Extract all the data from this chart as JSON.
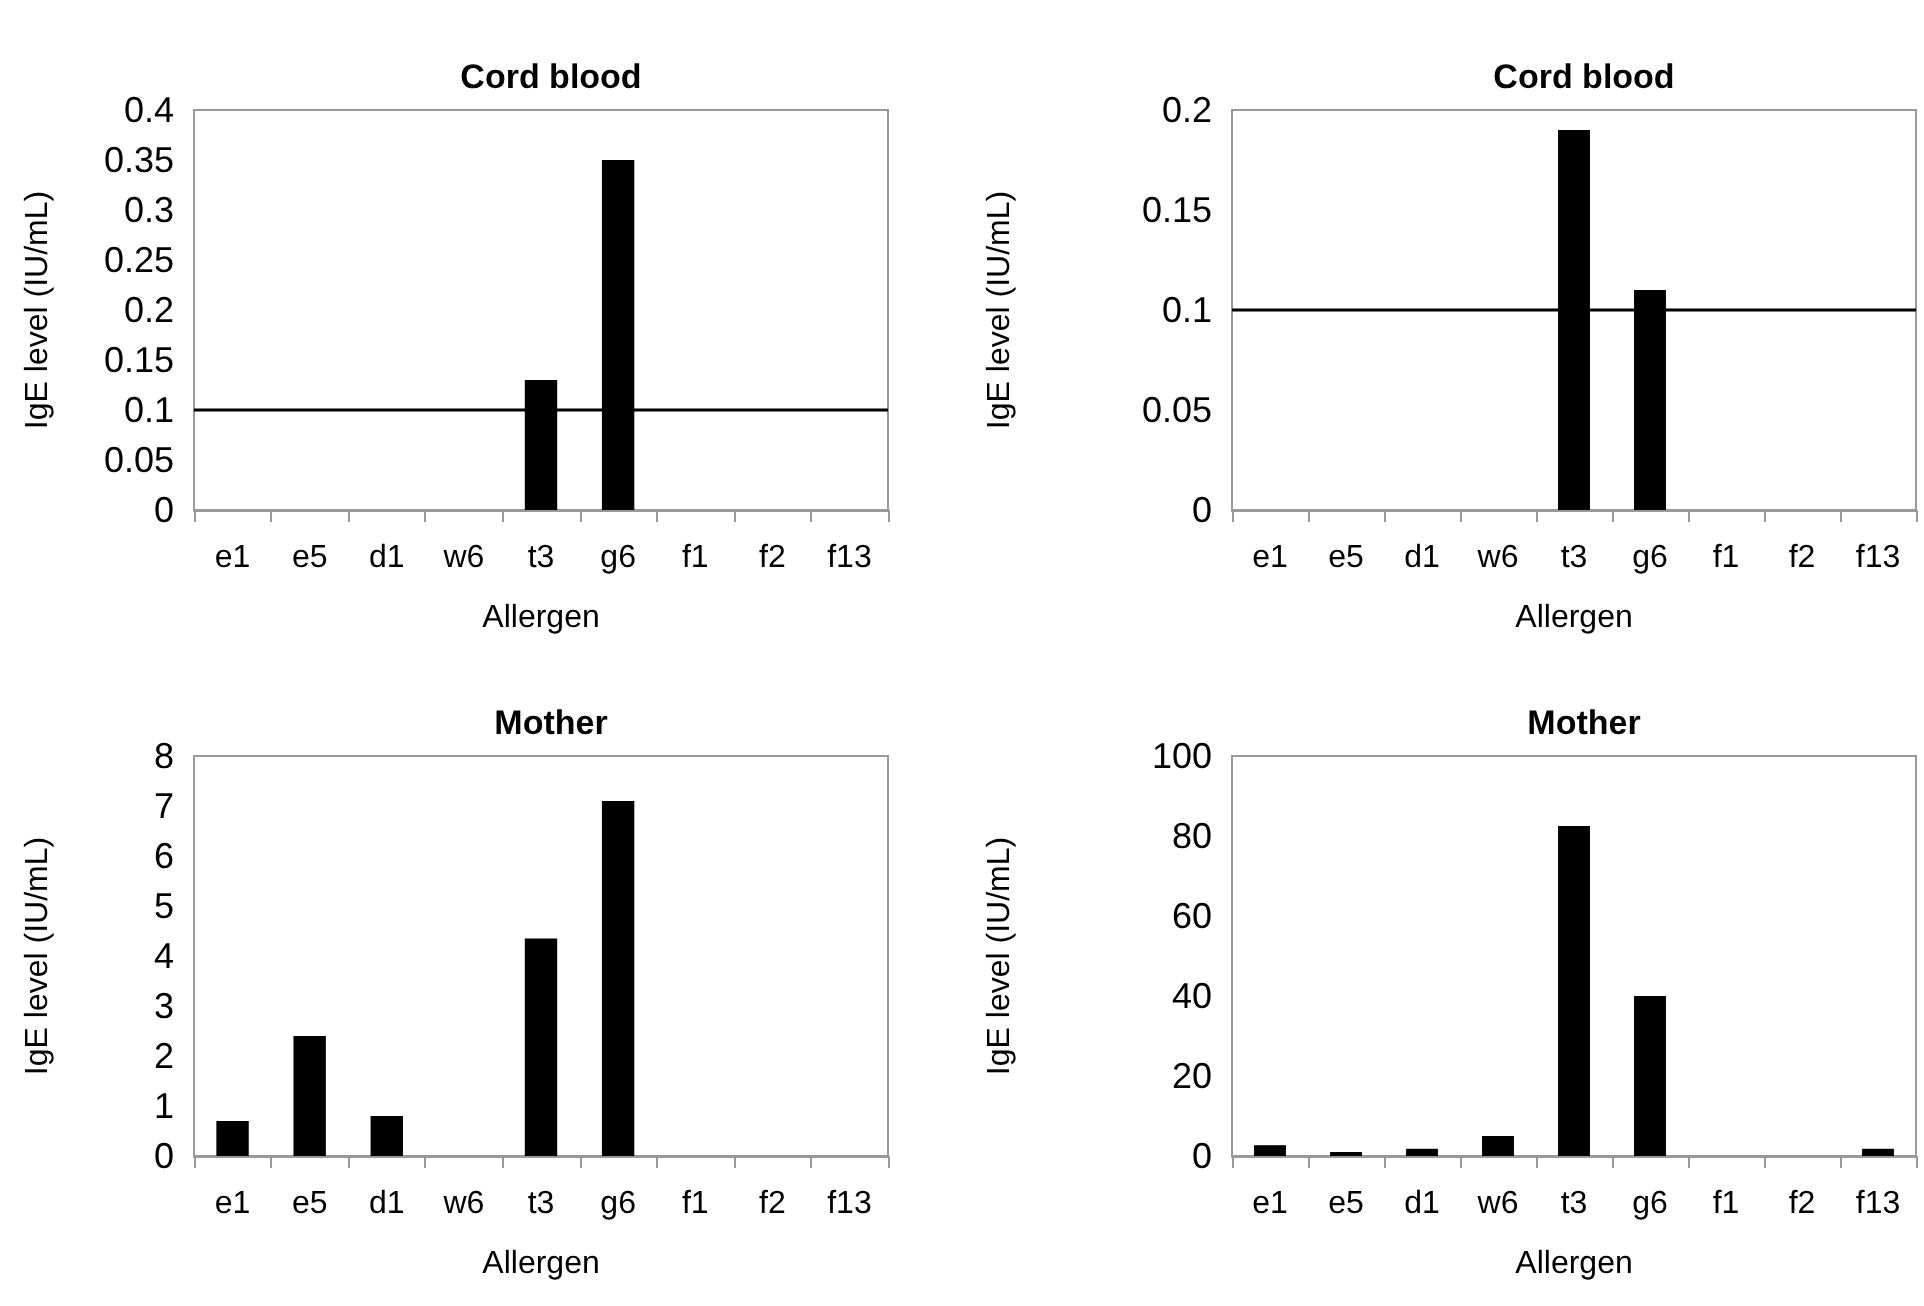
{
  "chart_data": [
    {
      "type": "bar",
      "title": "Cord blood",
      "xlabel": "Allergen",
      "ylabel": "IgE level (IU/mL)",
      "categories": [
        "e1",
        "e5",
        "d1",
        "w6",
        "t3",
        "g6",
        "f1",
        "f2",
        "f13"
      ],
      "color": "#000000",
      "values": [
        0,
        0,
        0,
        0,
        0.13,
        0.35,
        0,
        0,
        0
      ],
      "ylim": [
        0,
        0.4
      ],
      "yticks": [
        0,
        0.05,
        0.1,
        0.15,
        0.2,
        0.25,
        0.3,
        0.35,
        0.4
      ],
      "ref_lines": [
        {
          "axis": "y",
          "value": 0.1,
          "color": "#000000"
        }
      ]
    },
    {
      "type": "bar",
      "title": "Cord blood",
      "xlabel": "Allergen",
      "ylabel": "IgE level (IU/mL)",
      "categories": [
        "e1",
        "e5",
        "d1",
        "w6",
        "t3",
        "g6",
        "f1",
        "f2",
        "f13"
      ],
      "color": "#000000",
      "values": [
        0,
        0,
        0,
        0,
        0.19,
        0.11,
        0,
        0,
        0
      ],
      "ylim": [
        0,
        0.2
      ],
      "yticks": [
        0,
        0.05,
        0.1,
        0.15,
        0.2
      ],
      "ref_lines": [
        {
          "axis": "y",
          "value": 0.1,
          "color": "#000000"
        }
      ]
    },
    {
      "type": "bar",
      "title": "Mother",
      "xlabel": "Allergen",
      "ylabel": "IgE level (IU/mL)",
      "categories": [
        "e1",
        "e5",
        "d1",
        "w6",
        "t3",
        "g6",
        "f1",
        "f2",
        "f13"
      ],
      "color": "#000000",
      "values": [
        0.7,
        2.4,
        0.8,
        0,
        4.35,
        7.1,
        0,
        0,
        0
      ],
      "ylim": [
        0,
        8
      ],
      "yticks": [
        0,
        1,
        2,
        3,
        4,
        5,
        6,
        7,
        8
      ]
    },
    {
      "type": "bar",
      "title": "Mother",
      "xlabel": "Allergen",
      "ylabel": "IgE level (IU/mL)",
      "categories": [
        "e1",
        "e5",
        "d1",
        "w6",
        "t3",
        "g6",
        "f1",
        "f2",
        "f13"
      ],
      "color": "#000000",
      "values": [
        2.7,
        1,
        1.8,
        5,
        82.5,
        40,
        0,
        0,
        1.8
      ],
      "ylim": [
        0,
        100
      ],
      "yticks": [
        0,
        20,
        40,
        60,
        80,
        100
      ]
    }
  ]
}
